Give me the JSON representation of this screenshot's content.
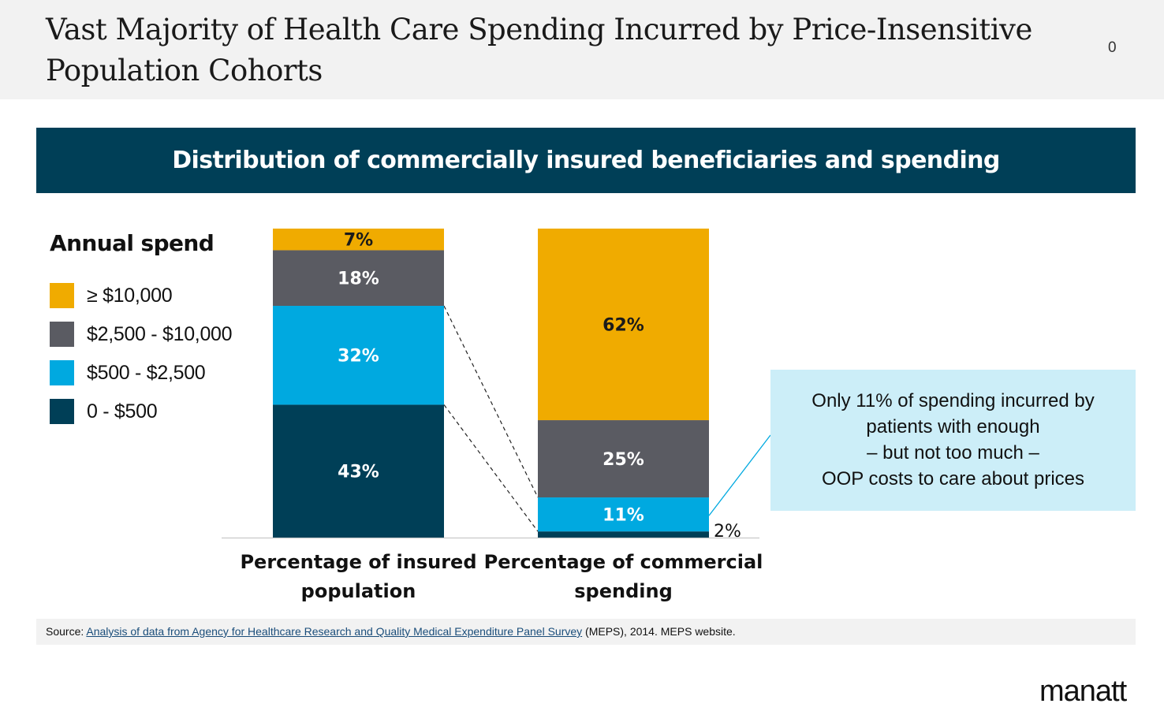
{
  "title": "Vast Majority of Health Care Spending Incurred by Price-Insensitive Population Cohorts",
  "page_number": "0",
  "banner": "Distribution of commercially insured beneficiaries and spending",
  "legend": {
    "title": "Annual spend",
    "items": [
      {
        "label": "≥ $10,000",
        "color": "#f0ab00"
      },
      {
        "label": "$2,500 - $10,000",
        "color": "#5a5b62"
      },
      {
        "label": "$500 - $2,500",
        "color": "#00a9e0"
      },
      {
        "label": "0 - $500",
        "color": "#003f57"
      }
    ]
  },
  "chart_data": {
    "type": "bar",
    "stacked": true,
    "categories": [
      "Percentage of insured population",
      "Percentage of commercial spending"
    ],
    "category_lines": [
      [
        "Percentage of insured",
        "population"
      ],
      [
        "Percentage of commercial",
        "spending"
      ]
    ],
    "series": [
      {
        "name": "0 - $500",
        "values": [
          43,
          2
        ],
        "labels": [
          "43%",
          "2%"
        ],
        "color": "#003f57"
      },
      {
        "name": "$500 - $2,500",
        "values": [
          32,
          11
        ],
        "labels": [
          "32%",
          "11%"
        ],
        "color": "#00a9e0"
      },
      {
        "name": "$2,500 - $10,000",
        "values": [
          18,
          25
        ],
        "labels": [
          "18%",
          "25%"
        ],
        "color": "#5a5b62"
      },
      {
        "name": "≥ $10,000",
        "values": [
          7,
          62
        ],
        "labels": [
          "7%",
          "62%"
        ],
        "color": "#f0ab00"
      }
    ],
    "ylim": [
      0,
      100
    ],
    "title": "Distribution of commercially insured beneficiaries and spending",
    "legend_title": "Annual spend",
    "legend_position": "left"
  },
  "callout": {
    "lines": [
      "Only 11% of spending incurred by",
      "patients with enough",
      "– but not too much  –",
      "OOP costs to care about prices"
    ]
  },
  "source": {
    "prefix": "Source: ",
    "link_text": "Analysis of data from Agency for Healthcare Research and Quality Medical Expenditure Panel Survey",
    "suffix": " (MEPS), 2014. MEPS website."
  },
  "logo": "manatt"
}
